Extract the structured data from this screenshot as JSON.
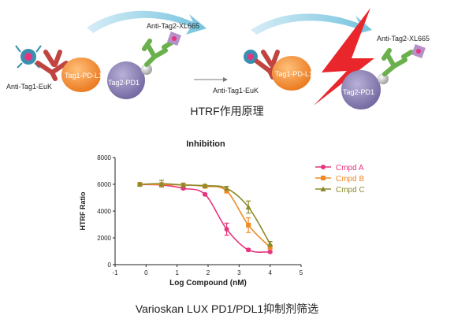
{
  "diagram": {
    "left": {
      "labels": {
        "tag1": "Tag1-PD-L1",
        "tag2": "Tag2-PD1",
        "eu": "Anti-Tag1-EuK",
        "xl": "Anti-Tag2-XL665"
      }
    },
    "right": {
      "labels": {
        "tag1": "Tag1-PD-L1",
        "tag2": "Tag2-PD1",
        "eu": "Anti-Tag1-EuK",
        "xl": "Anti-Tag2-XL665"
      }
    },
    "caption": "HTRF作用原理",
    "colors": {
      "orange": "#f08a24",
      "purple": "#7c6fa8",
      "red_antibody": "#c0443f",
      "green_antibody": "#6ab04c",
      "arrow": "#5bb8d8",
      "lightning": "#e8262c"
    }
  },
  "chart_data": {
    "type": "line",
    "title": "Inhibition",
    "xlabel": "Log Compound (nM)",
    "ylabel": "HTRF Ratio",
    "xlim": [
      -1,
      5
    ],
    "ylim": [
      0,
      8000
    ],
    "xticks": [
      "-1",
      "0",
      "1",
      "2",
      "3",
      "4",
      "5"
    ],
    "yticks": [
      "0",
      "2000",
      "4000",
      "6000",
      "8000"
    ],
    "legend_position": "right",
    "series": [
      {
        "name": "Cmpd A",
        "color": "#e6357d",
        "marker": "circle",
        "x": [
          -0.2,
          0.5,
          1.2,
          1.9,
          2.6,
          3.3,
          4.0
        ],
        "y": [
          5980,
          5950,
          5700,
          5250,
          2650,
          1100,
          950
        ],
        "err": [
          80,
          80,
          80,
          80,
          450,
          90,
          60
        ]
      },
      {
        "name": "Cmpd B",
        "color": "#f08a24",
        "marker": "square",
        "x": [
          -0.2,
          0.5,
          1.2,
          1.9,
          2.6,
          3.3,
          4.0
        ],
        "y": [
          6000,
          5980,
          5950,
          5850,
          5500,
          2950,
          1300
        ],
        "err": [
          80,
          80,
          80,
          80,
          150,
          550,
          150
        ]
      },
      {
        "name": "Cmpd C",
        "color": "#8b8a2a",
        "marker": "triangle",
        "x": [
          -0.2,
          0.5,
          1.2,
          1.9,
          2.6,
          3.3,
          4.0
        ],
        "y": [
          6000,
          6050,
          5950,
          5900,
          5700,
          4300,
          1550
        ],
        "err": [
          80,
          250,
          120,
          80,
          150,
          450,
          180
        ]
      }
    ]
  },
  "chart_caption": "Varioskan LUX PD1/PDL1抑制剂筛选"
}
